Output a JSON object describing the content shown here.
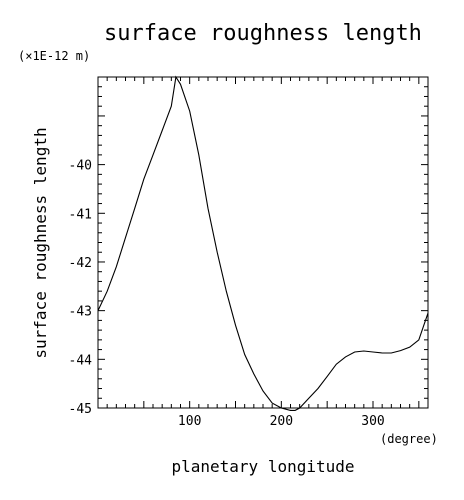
{
  "chart_data": {
    "type": "line",
    "title": "surface roughness length",
    "ylabel": "surface roughness length",
    "xlabel": "planetary longitude",
    "y_unit": "(×1E-12 m)",
    "x_unit": "(degree)",
    "xlim": [
      0,
      360
    ],
    "ylim": [
      -45,
      -38.2
    ],
    "x_ticks": [
      100,
      200,
      300
    ],
    "y_ticks": [
      -45,
      -44,
      -43,
      -42,
      -41,
      -40
    ],
    "series": [
      {
        "x": [
          0,
          10,
          20,
          30,
          40,
          50,
          60,
          70,
          80,
          85,
          90,
          100,
          110,
          120,
          130,
          140,
          150,
          160,
          170,
          180,
          190,
          200,
          210,
          215,
          220,
          230,
          240,
          250,
          260,
          270,
          280,
          290,
          300,
          310,
          320,
          330,
          340,
          350,
          360
        ],
        "y": [
          -43.0,
          -42.6,
          -42.1,
          -41.5,
          -40.9,
          -40.3,
          -39.8,
          -39.3,
          -38.8,
          -38.2,
          -38.35,
          -38.9,
          -39.8,
          -40.9,
          -41.8,
          -42.6,
          -43.3,
          -43.9,
          -44.3,
          -44.65,
          -44.9,
          -45.0,
          -45.05,
          -45.05,
          -45.0,
          -44.8,
          -44.6,
          -44.35,
          -44.1,
          -43.95,
          -43.85,
          -43.83,
          -43.85,
          -43.87,
          -43.87,
          -43.82,
          -43.75,
          -43.6,
          -43.05
        ]
      }
    ]
  }
}
